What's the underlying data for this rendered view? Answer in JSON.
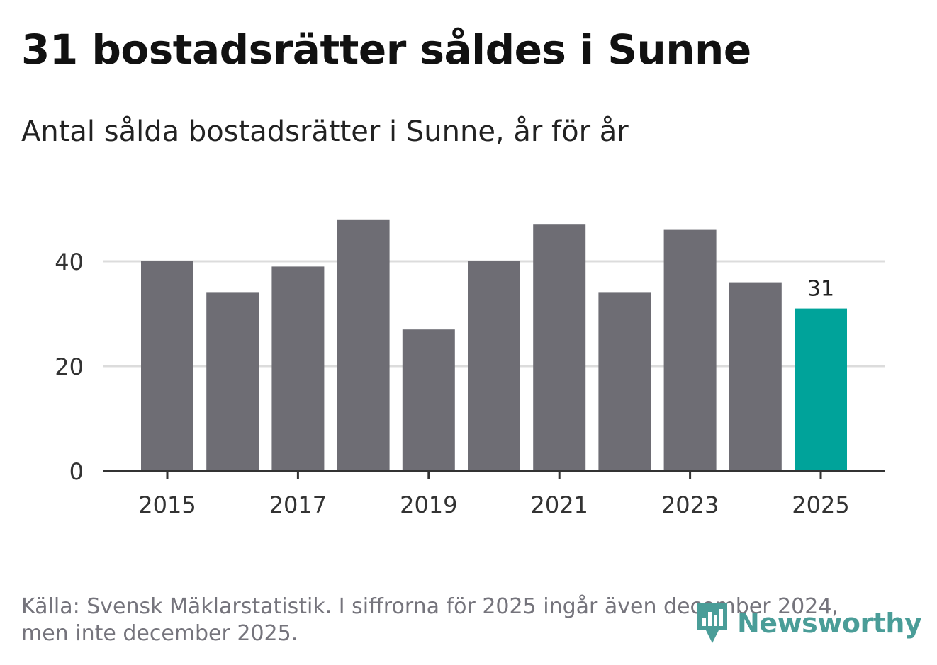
{
  "header": {
    "title": "31 bostadsrätter såldes i Sunne",
    "subtitle": "Antal sålda bostadsrätter i Sunne, år för år"
  },
  "footer": {
    "source_line1": "Källa: Svensk Mäklarstatistik. I siffrorna för 2025 ingår även december 2024,",
    "source_line2": "men inte december 2025.",
    "logo_text": "Newsworthy"
  },
  "colors": {
    "bar": "#6e6d74",
    "highlight": "#00a39a",
    "grid": "#dcdcdc",
    "axis": "#333333",
    "logo": "#4a9d98"
  },
  "chart_data": {
    "type": "bar",
    "title": "Antal sålda bostadsrätter i Sunne, år för år",
    "xlabel": "",
    "ylabel": "",
    "categories": [
      "2015",
      "2016",
      "2017",
      "2018",
      "2019",
      "2020",
      "2021",
      "2022",
      "2023",
      "2024",
      "2025"
    ],
    "values": [
      40,
      34,
      39,
      48,
      27,
      40,
      47,
      34,
      46,
      36,
      31
    ],
    "ylim": [
      0,
      48
    ],
    "y_ticks": [
      0,
      20,
      40
    ],
    "x_tick_labels": [
      "2015",
      "2017",
      "2019",
      "2021",
      "2023",
      "2025"
    ],
    "highlight_category": "2025",
    "data_labels": [
      {
        "category": "2025",
        "text": "31"
      }
    ],
    "grid": true
  }
}
